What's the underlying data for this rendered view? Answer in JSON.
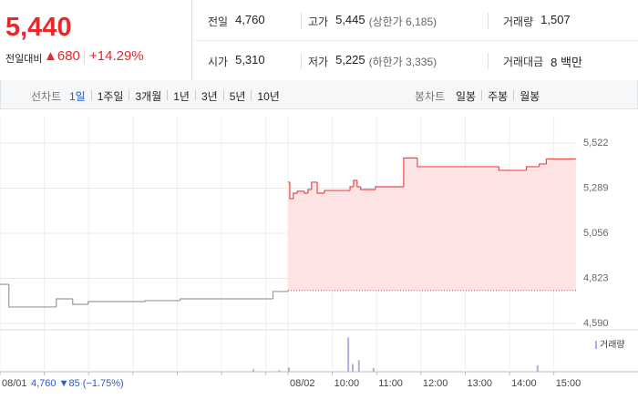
{
  "header": {
    "price": "5,440",
    "change_label": "전일대비",
    "change": "▲680",
    "change_pct": "+14.29%",
    "stats": [
      {
        "label": "전일",
        "value": "4,760"
      },
      {
        "label": "고가",
        "value": "5,445",
        "note": "(상한가 6,185)"
      },
      {
        "label": "거래량",
        "value": "1,507"
      },
      {
        "label": "시가",
        "value": "5,310"
      },
      {
        "label": "저가",
        "value": "5,225",
        "note": "(하한가 3,335)"
      },
      {
        "label": "거래대금",
        "value": "8 백만"
      }
    ]
  },
  "tabs": {
    "line_label": "선차트",
    "line_periods": [
      "1일",
      "1주일",
      "3개월",
      "1년",
      "3년",
      "5년",
      "10년"
    ],
    "active": 0,
    "candle_label": "봉차트",
    "candle_periods": [
      "일봉",
      "주봉",
      "월봉"
    ]
  },
  "chart_data": {
    "type": "line",
    "step": true,
    "xlim": [
      0,
      13
    ],
    "xticks": [
      {
        "value": 0,
        "label": "08/01"
      },
      {
        "value": 6.5,
        "label": "08/02"
      },
      {
        "value": 7.5,
        "label": "10:00"
      },
      {
        "value": 8.5,
        "label": "11:00"
      },
      {
        "value": 9.5,
        "label": "12:00"
      },
      {
        "value": 10.5,
        "label": "13:00"
      },
      {
        "value": 11.5,
        "label": "14:00"
      },
      {
        "value": 12.5,
        "label": "15:00"
      }
    ],
    "xgrid": [
      1,
      2,
      3,
      4,
      5,
      6
    ],
    "ylim": [
      4590,
      5522
    ],
    "yticks": [
      {
        "value": 4590,
        "label": "4,590"
      },
      {
        "value": 4823,
        "label": "4,823"
      },
      {
        "value": 5056,
        "label": "5,056"
      },
      {
        "value": 5289,
        "label": "5,289"
      },
      {
        "value": 5522,
        "label": "5,522"
      }
    ],
    "grid": true,
    "reference": 4760,
    "annotation": "4,760 ▼85 (−1.75%)",
    "series": [
      {
        "color": "#9a9a9a",
        "x": [
          0,
          0.2,
          1.27,
          1.64,
          1.99,
          3.28,
          4.07,
          6.08,
          6.16,
          6.5
        ],
        "values": [
          4792,
          4675,
          4717,
          4689,
          4703,
          4708,
          4717,
          4717,
          4755,
          4760
        ]
      },
      {
        "color": "#f04848",
        "fill": "#fde3e3",
        "x": [
          6.5,
          6.54,
          6.62,
          6.71,
          6.87,
          6.95,
          7.03,
          7.16,
          7.32,
          7.9,
          7.98,
          8.06,
          8.14,
          8.47,
          9.11,
          9.42,
          11.26,
          11.88,
          12.17,
          12.33,
          13
        ],
        "values": [
          5320,
          5235,
          5263,
          5273,
          5263,
          5282,
          5320,
          5263,
          5277,
          5296,
          5329,
          5296,
          5282,
          5296,
          5445,
          5400,
          5381,
          5400,
          5414,
          5440,
          5440
        ]
      }
    ],
    "volume": {
      "name": "거래량",
      "color": "#b4acdf",
      "prev_color": "#bbbbbb",
      "ylim": [
        0,
        850
      ],
      "x": [
        5.72,
        6.3,
        6.52,
        7.86,
        7.96,
        8.1,
        8.43,
        12.13
      ],
      "values": [
        60,
        40,
        100,
        800,
        180,
        270,
        90,
        150
      ]
    }
  }
}
